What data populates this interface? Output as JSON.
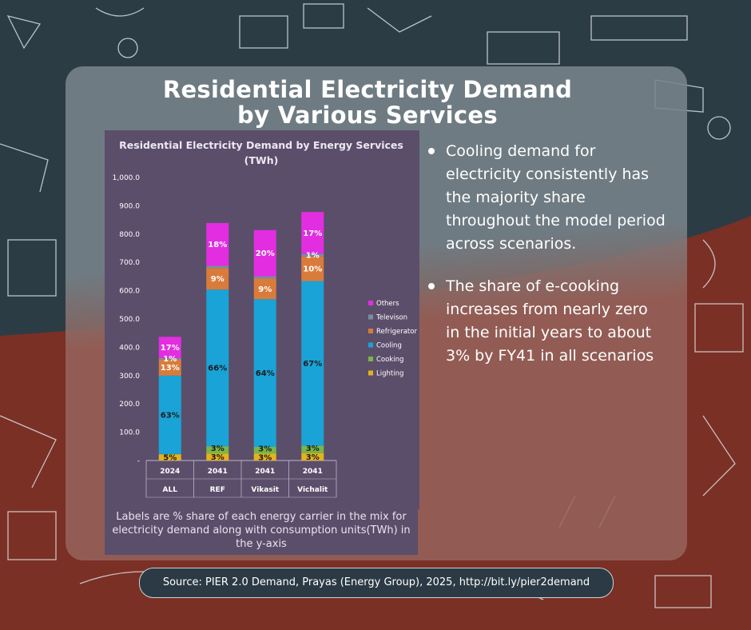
{
  "page": {
    "title_line1": "Residential Electricity Demand",
    "title_line2": "by Various Services",
    "note": "Labels are % share of each energy carrier in the mix for electricity demand along with consumption units(TWh) in the y-axis",
    "bullets": [
      "Cooling demand for electricity consistently has the majority share throughout the model period across scenarios.",
      "The share of e-cooking increases from nearly zero in the initial years to about 3% by FY41 in all scenarios"
    ],
    "source": "Source: PIER 2.0 Demand, Prayas (Energy Group), 2025, http://bit.ly/pier2demand"
  },
  "colors": {
    "Lighting": "#e4b21e",
    "Cooking": "#7ab648",
    "Cooling": "#1aa3d6",
    "Refrigerator": "#d97b3b",
    "Televison": "#7a8da0",
    "Others": "#e22ee0"
  },
  "chart_data": {
    "type": "bar",
    "stacked": true,
    "title": "Residential Electricity Demand by Energy Services (TWh)",
    "categories": [
      {
        "year": "2024",
        "scenario": "ALL"
      },
      {
        "year": "2041",
        "scenario": "REF"
      },
      {
        "year": "2041",
        "scenario": "Vikasit"
      },
      {
        "year": "2041",
        "scenario": "Vichalit"
      }
    ],
    "series": [
      {
        "name": "Lighting",
        "values": [
          22,
          25,
          24,
          26
        ],
        "labels": [
          "5%",
          "3%",
          "3%",
          "3%"
        ]
      },
      {
        "name": "Cooking",
        "values": [
          1,
          25,
          24,
          26
        ],
        "labels": [
          "",
          "3%",
          "3%",
          "3%"
        ]
      },
      {
        "name": "Cooling",
        "values": [
          277,
          554,
          522,
          582
        ],
        "labels": [
          "63%",
          "66%",
          "64%",
          "67%"
        ]
      },
      {
        "name": "Refrigerator",
        "values": [
          57,
          76,
          73,
          87
        ],
        "labels": [
          "13%",
          "9%",
          "9%",
          "10%"
        ]
      },
      {
        "name": "Televison",
        "values": [
          5,
          8,
          8,
          9
        ],
        "labels": [
          "1%",
          "",
          "",
          "1%"
        ]
      },
      {
        "name": "Others",
        "values": [
          75,
          151,
          163,
          148
        ],
        "labels": [
          "17%",
          "18%",
          "20%",
          "17%"
        ]
      }
    ],
    "yticks": [
      "1,000.0",
      "900.0",
      "800.0",
      "700.0",
      "600.0",
      "500.0",
      "400.0",
      "300.0",
      "200.0",
      "100.0",
      "-"
    ],
    "ylim": [
      0,
      1000
    ],
    "legend": [
      "Others",
      "Televison",
      "Refrigerator",
      "Cooling",
      "Cooking",
      "Lighting"
    ],
    "legend_position": "right"
  }
}
